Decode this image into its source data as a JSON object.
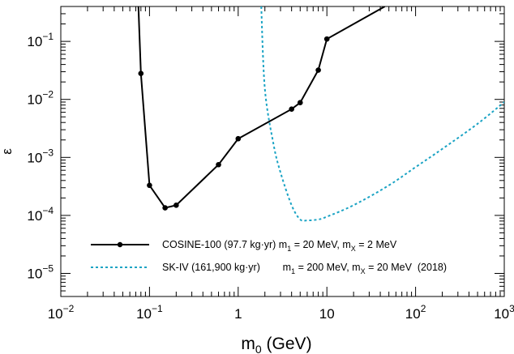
{
  "chart_data": {
    "type": "line",
    "xscale": "log",
    "yscale": "log",
    "xlim": [
      0.01,
      1000
    ],
    "ylim": [
      4e-06,
      0.4
    ],
    "xlabel": "m₀ (GeV)",
    "xlabel_main": "m",
    "xlabel_sub": "0",
    "xlabel_tail": " (GeV)",
    "ylabel": "ε",
    "x_ticks": [
      {
        "value": 0.01,
        "base": "10",
        "exp": "−2"
      },
      {
        "value": 0.1,
        "base": "10",
        "exp": "−1"
      },
      {
        "value": 1,
        "base": "1",
        "exp": ""
      },
      {
        "value": 10,
        "base": "10",
        "exp": ""
      },
      {
        "value": 100,
        "base": "10",
        "exp": "2"
      },
      {
        "value": 1000,
        "base": "10",
        "exp": "3"
      }
    ],
    "y_ticks": [
      {
        "value": 1e-05,
        "base": "10",
        "exp": "−5"
      },
      {
        "value": 0.0001,
        "base": "10",
        "exp": "−4"
      },
      {
        "value": 0.001,
        "base": "10",
        "exp": "−3"
      },
      {
        "value": 0.01,
        "base": "10",
        "exp": "−2"
      },
      {
        "value": 0.1,
        "base": "10",
        "exp": "−1"
      }
    ],
    "grid": false,
    "legend_position": "bottom-left",
    "series": [
      {
        "name": "COSINE-100 (97.7 kg·yr) m₁ = 20 MeV, mₓ = 2 MeV",
        "legend_parts": [
          "COSINE-100 (97.7 kg·yr) m",
          "1",
          " =   20 MeV, m",
          "X",
          " =   2 MeV"
        ],
        "color": "#000000",
        "style": "solid",
        "markers": true,
        "x": [
          0.08,
          0.1,
          0.15,
          0.2,
          0.6,
          1,
          4,
          5,
          8,
          10,
          45
        ],
        "y": [
          0.028,
          0.00033,
          0.000135,
          0.00015,
          0.00075,
          0.0021,
          0.0068,
          0.0088,
          0.032,
          0.11,
          0.4
        ],
        "marker_mask": [
          true,
          true,
          true,
          true,
          true,
          true,
          true,
          true,
          true,
          true,
          false
        ],
        "start": {
          "x": 0.075,
          "y": 0.4
        }
      },
      {
        "name": "SK-IV (161,900 kg·yr) m₁ = 200 MeV, mₓ = 20 MeV (2018)",
        "legend_parts": [
          "SK-IV (161,900 kg·yr)        m",
          "1",
          " = 200 MeV, m",
          "X",
          " = 20 MeV  (2018)"
        ],
        "color": "#1aa3c4",
        "style": "dashed",
        "markers": false,
        "x": [
          1.82,
          2,
          2.5,
          3,
          4,
          5,
          6,
          8,
          10,
          20,
          50,
          100,
          200,
          500,
          1000
        ],
        "y": [
          0.4,
          0.015,
          0.0017,
          0.00055,
          0.00015,
          8.5e-05,
          8.2e-05,
          8.5e-05,
          9.5e-05,
          0.00015,
          0.00033,
          0.00068,
          0.0014,
          0.0038,
          0.009
        ]
      }
    ]
  }
}
